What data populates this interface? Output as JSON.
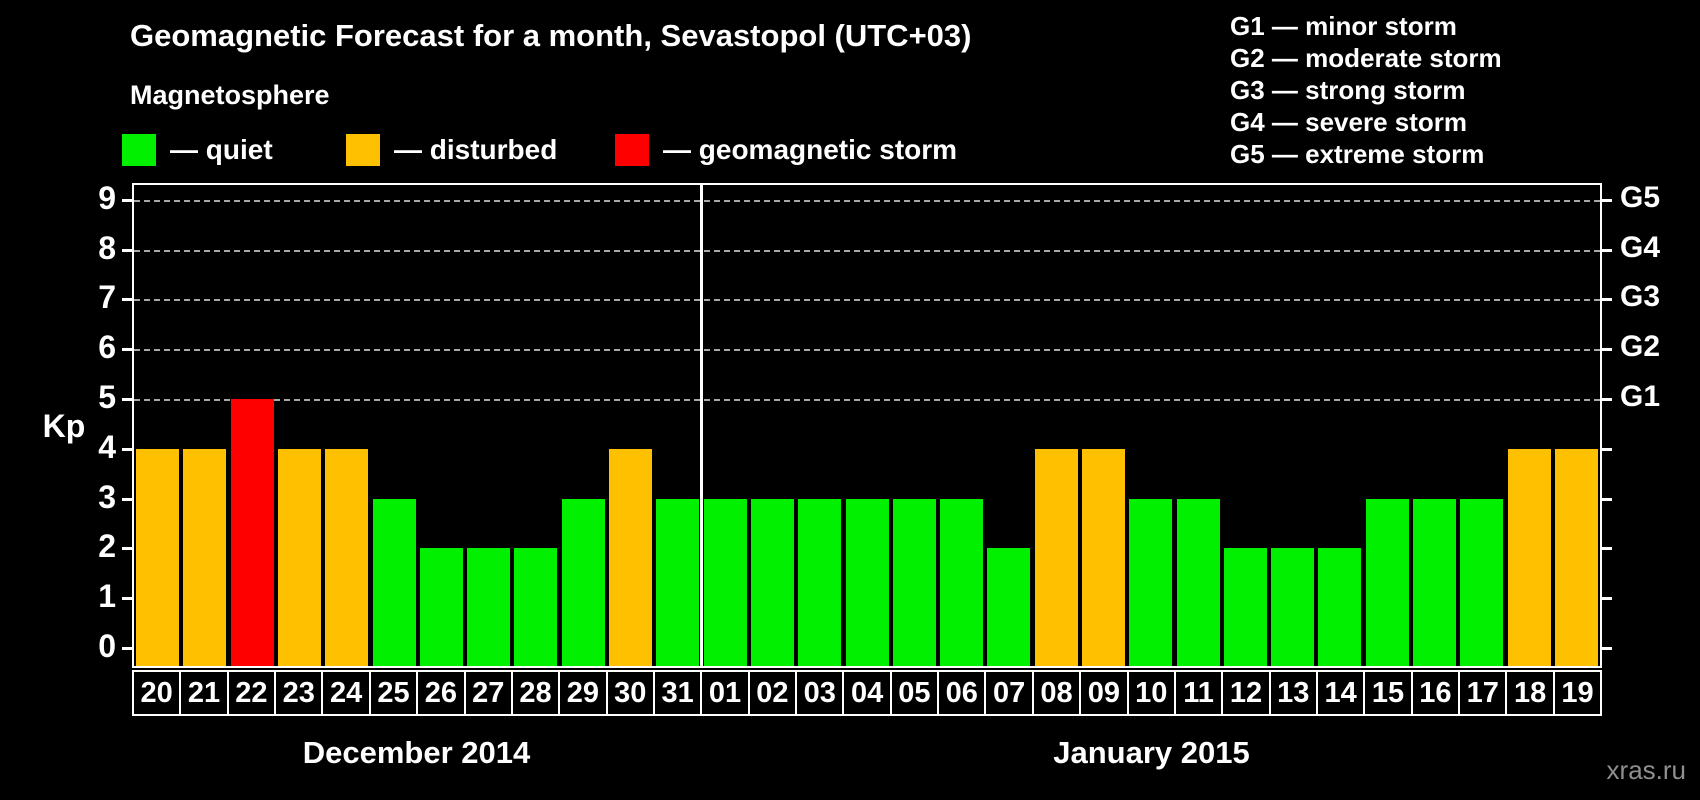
{
  "title": "Geomagnetic Forecast for a month, Sevastopol (UTC+03)",
  "legend": {
    "heading": "Magnetosphere",
    "items": [
      {
        "name": "quiet",
        "color": "#00f000",
        "label": "— quiet"
      },
      {
        "name": "disturbed",
        "color": "#ffc000",
        "label": "— disturbed"
      },
      {
        "name": "storm",
        "color": "#ff0000",
        "label": "— geomagnetic storm"
      }
    ]
  },
  "g_scale_legend": [
    "G1 — minor storm",
    "G2 — moderate storm",
    "G3 — strong storm",
    "G4 — severe storm",
    "G5 — extreme storm"
  ],
  "watermark": "xras.ru",
  "chart_data": {
    "type": "bar",
    "title": "Geomagnetic Forecast for a month, Sevastopol (UTC+03)",
    "ylabel": "Kp",
    "ylim": [
      0,
      9
    ],
    "yticks": [
      0,
      1,
      2,
      3,
      4,
      5,
      6,
      7,
      8,
      9
    ],
    "grid_levels": [
      5,
      6,
      7,
      8,
      9
    ],
    "grid_on": true,
    "right_axis_labels": {
      "5": "G1",
      "6": "G2",
      "7": "G3",
      "8": "G4",
      "9": "G5"
    },
    "status_colors": {
      "quiet": "#00f000",
      "disturbed": "#ffc000",
      "storm": "#ff0000"
    },
    "series": [
      {
        "month": "December 2014",
        "bars": [
          {
            "day": "20",
            "kp": 4,
            "status": "disturbed"
          },
          {
            "day": "21",
            "kp": 4,
            "status": "disturbed"
          },
          {
            "day": "22",
            "kp": 5,
            "status": "storm"
          },
          {
            "day": "23",
            "kp": 4,
            "status": "disturbed"
          },
          {
            "day": "24",
            "kp": 4,
            "status": "disturbed"
          },
          {
            "day": "25",
            "kp": 3,
            "status": "quiet"
          },
          {
            "day": "26",
            "kp": 2,
            "status": "quiet"
          },
          {
            "day": "27",
            "kp": 2,
            "status": "quiet"
          },
          {
            "day": "28",
            "kp": 2,
            "status": "quiet"
          },
          {
            "day": "29",
            "kp": 3,
            "status": "quiet"
          },
          {
            "day": "30",
            "kp": 4,
            "status": "disturbed"
          },
          {
            "day": "31",
            "kp": 3,
            "status": "quiet"
          }
        ]
      },
      {
        "month": "January 2015",
        "bars": [
          {
            "day": "01",
            "kp": 3,
            "status": "quiet"
          },
          {
            "day": "02",
            "kp": 3,
            "status": "quiet"
          },
          {
            "day": "03",
            "kp": 3,
            "status": "quiet"
          },
          {
            "day": "04",
            "kp": 3,
            "status": "quiet"
          },
          {
            "day": "05",
            "kp": 3,
            "status": "quiet"
          },
          {
            "day": "06",
            "kp": 3,
            "status": "quiet"
          },
          {
            "day": "07",
            "kp": 2,
            "status": "quiet"
          },
          {
            "day": "08",
            "kp": 4,
            "status": "disturbed"
          },
          {
            "day": "09",
            "kp": 4,
            "status": "disturbed"
          },
          {
            "day": "10",
            "kp": 3,
            "status": "quiet"
          },
          {
            "day": "11",
            "kp": 3,
            "status": "quiet"
          },
          {
            "day": "12",
            "kp": 2,
            "status": "quiet"
          },
          {
            "day": "13",
            "kp": 2,
            "status": "quiet"
          },
          {
            "day": "14",
            "kp": 2,
            "status": "quiet"
          },
          {
            "day": "15",
            "kp": 3,
            "status": "quiet"
          },
          {
            "day": "16",
            "kp": 3,
            "status": "quiet"
          },
          {
            "day": "17",
            "kp": 3,
            "status": "quiet"
          },
          {
            "day": "18",
            "kp": 4,
            "status": "disturbed"
          },
          {
            "day": "19",
            "kp": 4,
            "status": "disturbed"
          }
        ]
      }
    ]
  }
}
